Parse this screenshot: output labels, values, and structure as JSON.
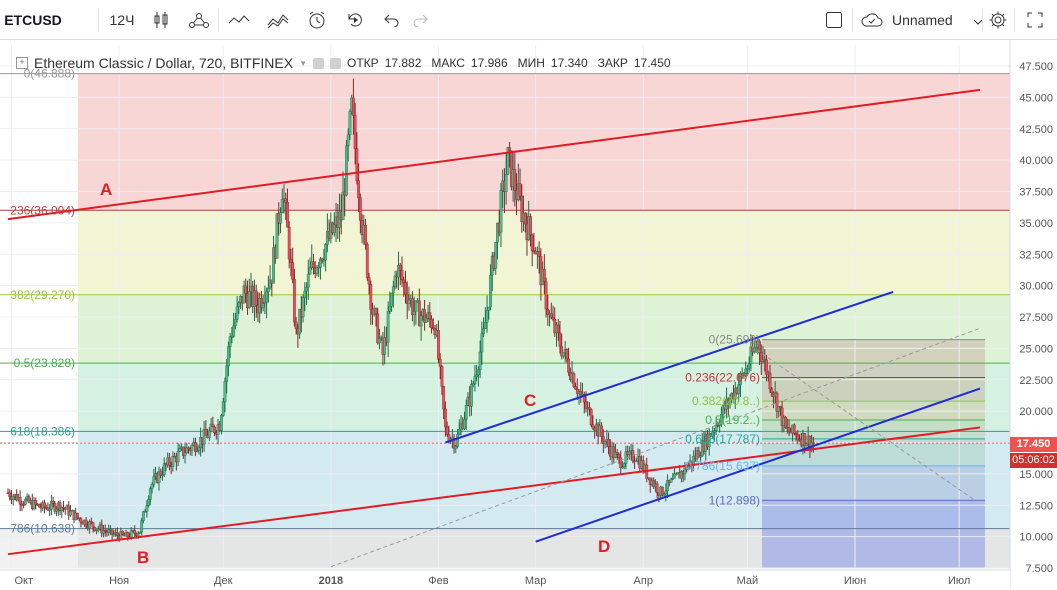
{
  "toolbar": {
    "symbol": "ETCUSD",
    "interval": "12Ч",
    "layout_name": "Unnamed",
    "icons": [
      "candles-icon",
      "indicators-icon",
      "line-icon",
      "compare-icon",
      "alert-icon",
      "replay-icon",
      "undo-icon",
      "redo-icon",
      "fullscreen-square-icon",
      "cloud-icon",
      "chevron-down-icon",
      "settings-gear-icon",
      "expand-icon"
    ]
  },
  "legend": {
    "title": "Ethereum Classic / Dollar, 720, BITFINEX",
    "open_label": "ОТКР",
    "open_value": "17.882",
    "high_label": "МАКС",
    "high_value": "17.986",
    "low_label": "МИН",
    "low_value": "17.340",
    "close_label": "ЗАКР",
    "close_value": "17.450"
  },
  "price_tag": {
    "price": "17.450",
    "countdown": "05:06:02",
    "color": "#ef5350",
    "countdown_color": "#d32f2f"
  },
  "colors": {
    "up": "#26a69a",
    "down": "#ef5350",
    "upBody": "#53b987",
    "downBody": "#eb4d5c",
    "trend_red": "#e31b23",
    "trend_blue": "#1f2bd6"
  },
  "chart_data": {
    "type": "candlestick",
    "ylim": [
      7.5,
      47.5
    ],
    "y_ticks": [
      "47.500",
      "45.000",
      "42.500",
      "40.000",
      "37.500",
      "35.000",
      "32.500",
      "30.000",
      "27.500",
      "25.000",
      "22.500",
      "20.000",
      "17.500",
      "15.000",
      "12.500",
      "10.000",
      "7.500"
    ],
    "x_ticks": [
      "Окт",
      "Ноя",
      "Дек",
      "2018",
      "Фев",
      "Мар",
      "Апр",
      "Май",
      "Июн",
      "Июл"
    ],
    "fib_main": [
      {
        "label": "0(46.888)",
        "value": 46.888
      },
      {
        "label": "236(36.004)",
        "value": 36.004
      },
      {
        "label": "382(29.270)",
        "value": 29.27
      },
      {
        "label": "0.5(23.828)",
        "value": 23.828
      },
      {
        "label": "618(18.386)",
        "value": 18.386
      },
      {
        "label": "786(10.638)",
        "value": 10.638
      }
    ],
    "fib_small": [
      {
        "label": "0(25.696)",
        "value": 25.696
      },
      {
        "label": "0.236(22.676)",
        "value": 22.676
      },
      {
        "label": "0.382(20.8..)",
        "value": 20.8
      },
      {
        "label": "0.5(19.2..)",
        "value": 19.29
      },
      {
        "label": "0.618(17.787)",
        "value": 17.787
      },
      {
        "label": "0.786(15.637)",
        "value": 15.637
      },
      {
        "label": "1(12.898)",
        "value": 12.898
      }
    ],
    "annotations": [
      "A",
      "B",
      "C",
      "D"
    ],
    "close_path": [
      [
        "2017-09-30",
        13.5
      ],
      [
        "2017-10-05",
        12.8
      ],
      [
        "2017-10-10",
        12.3
      ],
      [
        "2017-10-15",
        12.5
      ],
      [
        "2017-10-20",
        11.5
      ],
      [
        "2017-10-25",
        10.8
      ],
      [
        "2017-10-30",
        10.2
      ],
      [
        "2017-11-03",
        10.0
      ],
      [
        "2017-11-07",
        10.5
      ],
      [
        "2017-11-10",
        14.0
      ],
      [
        "2017-11-14",
        15.5
      ],
      [
        "2017-11-18",
        16.5
      ],
      [
        "2017-11-22",
        17.2
      ],
      [
        "2017-11-26",
        18.0
      ],
      [
        "2017-11-30",
        19.0
      ],
      [
        "2017-12-03",
        26.0
      ],
      [
        "2017-12-07",
        29.5
      ],
      [
        "2017-12-11",
        28.5
      ],
      [
        "2017-12-15",
        31.0
      ],
      [
        "2017-12-18",
        38.0
      ],
      [
        "2017-12-20",
        33.0
      ],
      [
        "2017-12-22",
        26.0
      ],
      [
        "2017-12-26",
        31.0
      ],
      [
        "2017-12-30",
        33.0
      ],
      [
        "2018-01-04",
        35.5
      ],
      [
        "2018-01-07",
        44.0
      ],
      [
        "2018-01-10",
        35.0
      ],
      [
        "2018-01-13",
        28.0
      ],
      [
        "2018-01-16",
        24.5
      ],
      [
        "2018-01-20",
        31.5
      ],
      [
        "2018-01-25",
        28.0
      ],
      [
        "2018-01-31",
        27.0
      ],
      [
        "2018-02-03",
        18.5
      ],
      [
        "2018-02-06",
        17.5
      ],
      [
        "2018-02-10",
        21.0
      ],
      [
        "2018-02-14",
        26.0
      ],
      [
        "2018-02-18",
        34.5
      ],
      [
        "2018-02-21",
        40.0
      ],
      [
        "2018-02-25",
        36.0
      ],
      [
        "2018-03-01",
        33.0
      ],
      [
        "2018-03-05",
        27.5
      ],
      [
        "2018-03-10",
        24.0
      ],
      [
        "2018-03-15",
        20.5
      ],
      [
        "2018-03-20",
        18.0
      ],
      [
        "2018-03-25",
        16.0
      ],
      [
        "2018-03-30",
        16.5
      ],
      [
        "2018-04-02",
        15.0
      ],
      [
        "2018-04-06",
        13.5
      ],
      [
        "2018-04-10",
        14.5
      ],
      [
        "2018-04-15",
        16.0
      ],
      [
        "2018-04-20",
        18.0
      ],
      [
        "2018-04-25",
        20.5
      ],
      [
        "2018-04-30",
        23.0
      ],
      [
        "2018-05-04",
        25.5
      ],
      [
        "2018-05-08",
        22.0
      ],
      [
        "2018-05-12",
        18.5
      ],
      [
        "2018-05-16",
        18.0
      ],
      [
        "2018-05-20",
        17.45
      ]
    ]
  }
}
